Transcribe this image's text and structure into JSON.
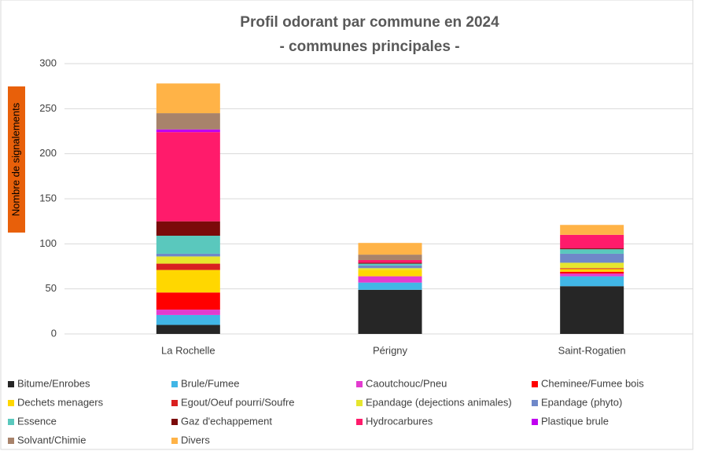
{
  "chart_data": {
    "type": "bar",
    "stacked": true,
    "title": "Profil odorant par commune en 2024",
    "subtitle": "- communes principales  -",
    "y_label": "Nombre de signalements",
    "categories": [
      "La Rochelle",
      "Périgny",
      "Saint-Rogatien"
    ],
    "ylim": [
      0,
      300
    ],
    "yticks": [
      0,
      50,
      100,
      150,
      200,
      250,
      300
    ],
    "grid": true,
    "series": [
      {
        "name": "Bitume/Enrobes",
        "color": "#262626",
        "values": [
          10,
          49,
          53
        ]
      },
      {
        "name": "Brule/Fumee",
        "color": "#41b6e6",
        "values": [
          11,
          8,
          11
        ]
      },
      {
        "name": "Caoutchouc/Pneu",
        "color": "#e33bcf",
        "values": [
          6,
          7,
          3
        ]
      },
      {
        "name": "Cheminee/Fumee bois",
        "color": "#ff0000",
        "values": [
          19,
          0,
          2
        ]
      },
      {
        "name": "Dechets menagers",
        "color": "#ffd700",
        "values": [
          25,
          7,
          3
        ]
      },
      {
        "name": "Egout/Oeuf pourri/Soufre",
        "color": "#d92020",
        "values": [
          7,
          0,
          1
        ]
      },
      {
        "name": "Epandage (dejections animales)",
        "color": "#e6e62e",
        "values": [
          8,
          2,
          6
        ]
      },
      {
        "name": "Epandage (phyto)",
        "color": "#6f88c9",
        "values": [
          3,
          3,
          10
        ]
      },
      {
        "name": "Essence",
        "color": "#5ac8bd",
        "values": [
          20,
          2,
          5
        ]
      },
      {
        "name": "Gaz d'echappement",
        "color": "#7b0a0a",
        "values": [
          16,
          1,
          1
        ]
      },
      {
        "name": "Hydrocarbures",
        "color": "#ff1b6b",
        "values": [
          99,
          3,
          15
        ]
      },
      {
        "name": "Plastique brule",
        "color": "#c000f0",
        "values": [
          3,
          0,
          0
        ]
      },
      {
        "name": "Solvant/Chimie",
        "color": "#a8836b",
        "values": [
          18,
          6,
          0
        ]
      },
      {
        "name": "Divers",
        "color": "#ffb347",
        "values": [
          33,
          13,
          11
        ]
      }
    ]
  }
}
